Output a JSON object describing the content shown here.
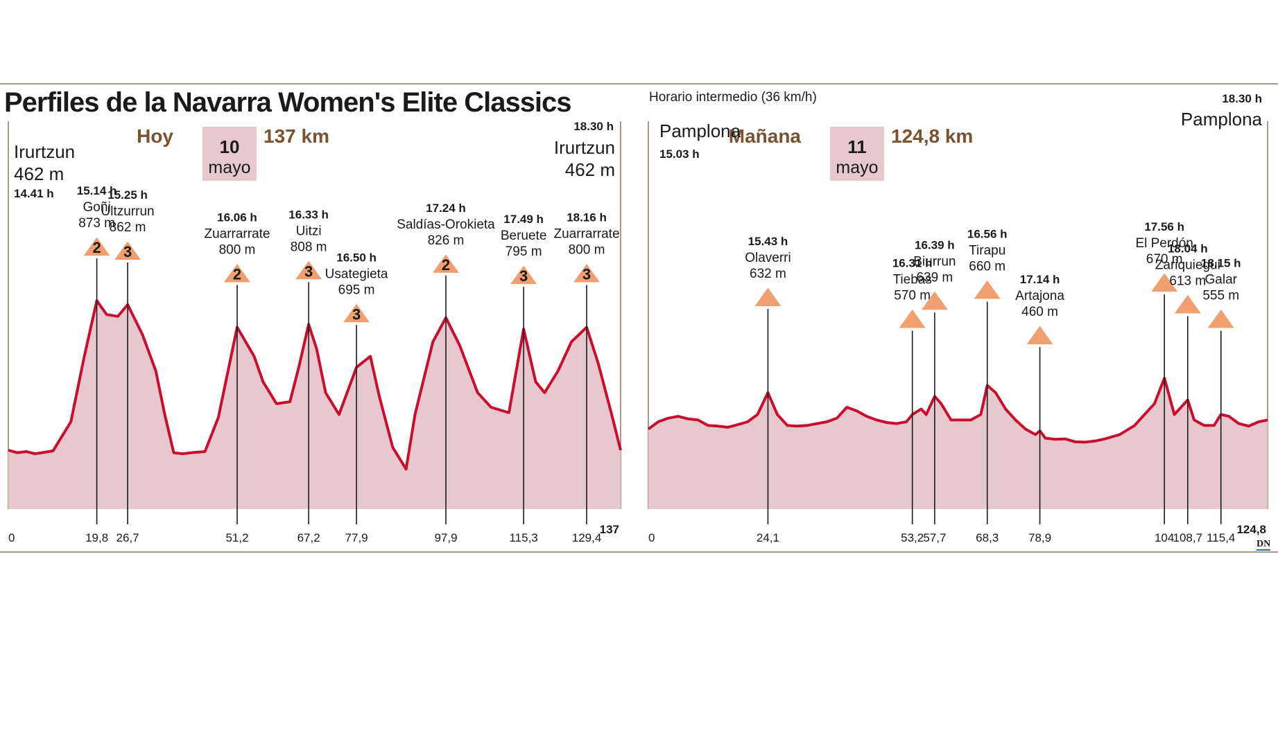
{
  "title": "Perfiles de la Navarra Women's Elite Classics",
  "note": "Horario intermedio (36 km/h)",
  "credit": "DN",
  "colors": {
    "line": "#c8102e",
    "fill": "#e6c8ce",
    "climb": "#f0a070",
    "date_box": "#e6c8ce",
    "date_text": "#7a5230",
    "frame": "#8a7a5a"
  },
  "chart_data": [
    {
      "type": "area",
      "stage_label": "Hoy",
      "date_day": "10",
      "date_month": "mayo",
      "distance_label": "137 km",
      "start": {
        "name": "Irurtzun",
        "altitude": "462 m",
        "time": "14.41 h"
      },
      "finish": {
        "name": "Irurtzun",
        "altitude": "462 m",
        "time": "18.30 h"
      },
      "xlim": [
        0,
        137
      ],
      "x_ticks": [
        "0",
        "19,8",
        "26,7",
        "51,2",
        "67,2",
        "77,9",
        "97,9",
        "115,3",
        "129,4",
        "137"
      ],
      "markers": [
        {
          "km": 19.8,
          "name": "Goñi",
          "altitude": "873 m",
          "time": "15.14 h",
          "category": "2"
        },
        {
          "km": 26.7,
          "name": "Ultzurrun",
          "altitude": "862 m",
          "time": "15.25 h",
          "category": "3"
        },
        {
          "km": 51.2,
          "name": "Zuarrarrate",
          "altitude": "800 m",
          "time": "16.06 h",
          "category": "2"
        },
        {
          "km": 67.2,
          "name": "Uitzi",
          "altitude": "808 m",
          "time": "16.33 h",
          "category": "3"
        },
        {
          "km": 77.9,
          "name": "Usategieta",
          "altitude": "695 m",
          "time": "16.50 h",
          "category": "3"
        },
        {
          "km": 97.9,
          "name": "Saldías-Orokieta",
          "altitude": "826 m",
          "time": "17.24 h",
          "category": "2"
        },
        {
          "km": 115.3,
          "name": "Beruete",
          "altitude": "795 m",
          "time": "17.49 h",
          "category": "3"
        },
        {
          "km": 129.4,
          "name": "Zuarrarrate",
          "altitude": "800 m",
          "time": "18.16 h",
          "category": "3"
        }
      ],
      "profile": {
        "x": [
          0,
          2,
          4,
          6,
          8,
          10,
          14,
          17,
          19.8,
          22,
          24.5,
          26.7,
          30,
          33,
          35,
          37,
          39,
          41,
          44,
          47,
          51.2,
          55,
          57,
          60,
          63,
          65,
          67.2,
          69,
          71,
          74,
          77.9,
          81,
          83,
          86,
          89,
          91,
          95,
          97.9,
          101,
          105,
          108,
          112,
          115.3,
          118,
          120,
          123,
          126,
          129.4,
          132,
          135,
          137
        ],
        "y": [
          462,
          455,
          458,
          452,
          456,
          460,
          540,
          720,
          873,
          835,
          830,
          862,
          780,
          680,
          560,
          455,
          452,
          455,
          458,
          552,
          800,
          720,
          650,
          590,
          595,
          690,
          808,
          740,
          620,
          560,
          690,
          720,
          610,
          470,
          410,
          560,
          760,
          826,
          750,
          620,
          580,
          565,
          795,
          650,
          620,
          680,
          760,
          800,
          700,
          560,
          462
        ]
      }
    },
    {
      "type": "area",
      "stage_label": "Mañana",
      "date_day": "11",
      "date_month": "mayo",
      "distance_label": "124,8 km",
      "start": {
        "name": "Pamplona",
        "altitude": "",
        "time": "15.03 h"
      },
      "finish": {
        "name": "Pamplona",
        "altitude": "",
        "time": "18.30 h"
      },
      "xlim": [
        0,
        124.8
      ],
      "x_ticks": [
        "0",
        "24,1",
        "53,2",
        "57,7",
        "68,3",
        "78,9",
        "104",
        "108,7",
        "115,4",
        "124,8"
      ],
      "markers": [
        {
          "km": 24.1,
          "name": "Olaverri",
          "altitude": "632 m",
          "time": "15.43 h",
          "category": ""
        },
        {
          "km": 53.2,
          "name": "Tiebas",
          "altitude": "570 m",
          "time": "16.31 h",
          "category": ""
        },
        {
          "km": 57.7,
          "name": "Biurrun",
          "altitude": "639 m",
          "time": "16.39 h",
          "category": ""
        },
        {
          "km": 68.3,
          "name": "Tirapu",
          "altitude": "660 m",
          "time": "16.56 h",
          "category": ""
        },
        {
          "km": 78.9,
          "name": "Artajona",
          "altitude": "460 m",
          "time": "17.14 h",
          "category": ""
        },
        {
          "km": 104,
          "name": "El Perdón",
          "altitude": "670 m",
          "time": "17.56 h",
          "category": ""
        },
        {
          "km": 108.7,
          "name": "Zariquiegui",
          "altitude": "613 m",
          "time": "18.04 h",
          "category": ""
        },
        {
          "km": 115.4,
          "name": "Galar",
          "altitude": "555 m",
          "time": "18.15 h",
          "category": ""
        }
      ],
      "profile": {
        "x": [
          0,
          2,
          4,
          6,
          8,
          10,
          12,
          14,
          16,
          18,
          20,
          22,
          24.1,
          26,
          28,
          30,
          32,
          34,
          36,
          38,
          40,
          42,
          44,
          46,
          48,
          50,
          52,
          53.2,
          55,
          56,
          57.7,
          59,
          61,
          63,
          65,
          67,
          68.3,
          70,
          72,
          74,
          76,
          78,
          78.9,
          80,
          82,
          84,
          86,
          88,
          90,
          92,
          95,
          98,
          100,
          102,
          104,
          106,
          108.7,
          110,
          112,
          114,
          115.4,
          117,
          119,
          121,
          123,
          124.8
        ],
        "y": [
          520,
          540,
          550,
          555,
          548,
          545,
          530,
          528,
          525,
          532,
          540,
          560,
          620,
          560,
          530,
          528,
          530,
          535,
          540,
          550,
          580,
          570,
          555,
          545,
          538,
          535,
          540,
          560,
          575,
          560,
          610,
          590,
          545,
          545,
          545,
          560,
          640,
          620,
          575,
          545,
          520,
          505,
          515,
          495,
          492,
          493,
          485,
          484,
          487,
          493,
          505,
          530,
          560,
          590,
          660,
          560,
          600,
          545,
          530,
          530,
          560,
          555,
          535,
          528,
          540,
          545
        ]
      }
    }
  ]
}
